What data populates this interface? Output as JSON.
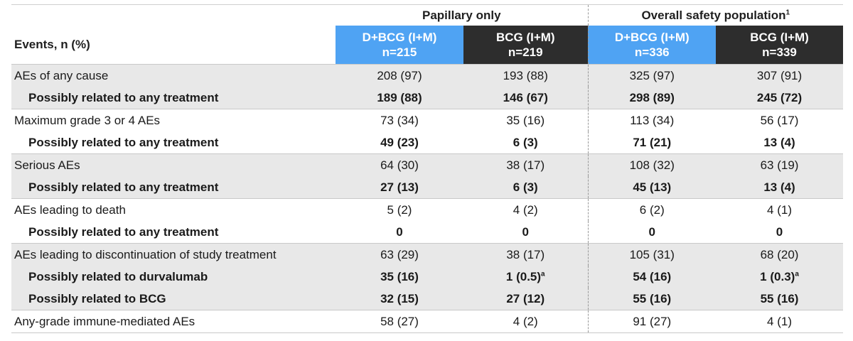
{
  "groups": {
    "papillary": "Papillary only",
    "overall": "Overall safety population",
    "overall_sup": "1"
  },
  "header": {
    "events_label": "Events, n (%)",
    "arms": [
      {
        "name": "D+BCG (I+M)",
        "n": "n=215",
        "color": "#4fa3f3"
      },
      {
        "name": "BCG (I+M)",
        "n": "n=219",
        "color": "#2d2d2d"
      },
      {
        "name": "D+BCG (I+M)",
        "n": "n=336",
        "color": "#4fa3f3"
      },
      {
        "name": "BCG (I+M)",
        "n": "n=339",
        "color": "#2d2d2d"
      }
    ]
  },
  "rows": [
    {
      "label": "AEs of any cause",
      "v": [
        "208 (97)",
        "193 (88)",
        "325 (97)",
        "307 (91)"
      ],
      "sup": [
        "",
        "",
        "",
        ""
      ]
    },
    {
      "label": "Possibly related to any treatment",
      "v": [
        "189 (88)",
        "146 (67)",
        "298 (89)",
        "245 (72)"
      ],
      "sup": [
        "",
        "",
        "",
        ""
      ]
    },
    {
      "label": "Maximum grade 3 or 4 AEs",
      "v": [
        "73 (34)",
        "35 (16)",
        "113 (34)",
        "56 (17)"
      ],
      "sup": [
        "",
        "",
        "",
        ""
      ]
    },
    {
      "label": "Possibly related to any treatment",
      "v": [
        "49 (23)",
        "6 (3)",
        "71 (21)",
        "13 (4)"
      ],
      "sup": [
        "",
        "",
        "",
        ""
      ]
    },
    {
      "label": "Serious AEs",
      "v": [
        "64 (30)",
        "38 (17)",
        "108 (32)",
        "63 (19)"
      ],
      "sup": [
        "",
        "",
        "",
        ""
      ]
    },
    {
      "label": "Possibly related to any treatment",
      "v": [
        "27 (13)",
        "6 (3)",
        "45 (13)",
        "13 (4)"
      ],
      "sup": [
        "",
        "",
        "",
        ""
      ]
    },
    {
      "label": "AEs leading to death",
      "v": [
        "5 (2)",
        "4 (2)",
        "6 (2)",
        "4 (1)"
      ],
      "sup": [
        "",
        "",
        "",
        ""
      ]
    },
    {
      "label": "Possibly related to any treatment",
      "v": [
        "0",
        "0",
        "0",
        "0"
      ],
      "sup": [
        "",
        "",
        "",
        ""
      ]
    },
    {
      "label": "AEs leading to discontinuation of study treatment",
      "v": [
        "63 (29)",
        "38 (17)",
        "105 (31)",
        "68 (20)"
      ],
      "sup": [
        "",
        "",
        "",
        ""
      ]
    },
    {
      "label": "Possibly related to durvalumab",
      "v": [
        "35 (16)",
        "1 (0.5)",
        "54 (16)",
        "1 (0.3)"
      ],
      "sup": [
        "",
        "a",
        "",
        "a"
      ]
    },
    {
      "label": "Possibly related to BCG",
      "v": [
        "32 (15)",
        "27 (12)",
        "55 (16)",
        "55 (16)"
      ],
      "sup": [
        "",
        "",
        "",
        ""
      ]
    },
    {
      "label": "Any-grade immune-mediated AEs",
      "v": [
        "58 (27)",
        "4 (2)",
        "91 (27)",
        "4 (1)"
      ],
      "sup": [
        "",
        "",
        "",
        ""
      ]
    }
  ]
}
